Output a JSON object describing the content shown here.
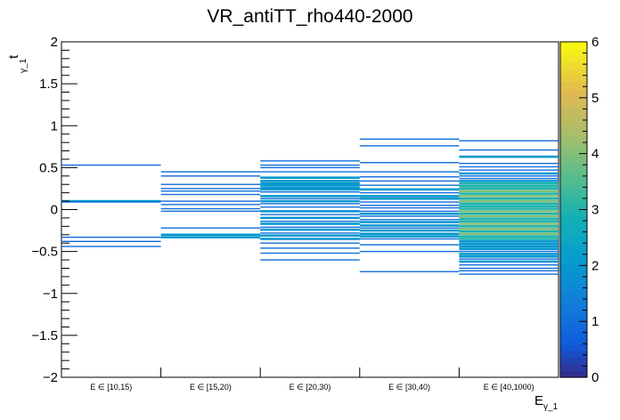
{
  "chart_data": {
    "type": "heatmap",
    "title": "VR_antiTT_rho440-2000",
    "xlabel": "E",
    "xlabel_sub": "γ_1",
    "ylabel": "t",
    "ylabel_sub": "γ_1",
    "categories": [
      "E ∈ [10,15)",
      "E ∈ [15,20)",
      "E ∈ [20,30)",
      "E ∈ [30,40)",
      "E ∈ [40,1000)"
    ],
    "ylim": [
      -2,
      2
    ],
    "yticks": [
      {
        "value": 2,
        "label": "2"
      },
      {
        "value": 1.5,
        "label": "1.5"
      },
      {
        "value": 1,
        "label": "1"
      },
      {
        "value": 0.5,
        "label": "0.5"
      },
      {
        "value": 0,
        "label": "0"
      },
      {
        "value": -0.5,
        "label": "−0.5"
      },
      {
        "value": -1,
        "label": "−1"
      },
      {
        "value": -1.5,
        "label": "−1.5"
      },
      {
        "value": -2,
        "label": "−2"
      }
    ],
    "zlim": [
      0,
      6
    ],
    "zticks": [
      {
        "value": 0,
        "label": "0"
      },
      {
        "value": 1,
        "label": "1"
      },
      {
        "value": 2,
        "label": "2"
      },
      {
        "value": 3,
        "label": "3"
      },
      {
        "value": 4,
        "label": "4"
      },
      {
        "value": 5,
        "label": "5"
      },
      {
        "value": 6,
        "label": "6"
      }
    ],
    "series": [
      {
        "name": "E ∈ [10,15)",
        "points": [
          [
            0.53,
            1
          ],
          [
            0.1,
            2
          ],
          [
            0.09,
            1
          ],
          [
            -0.33,
            1
          ],
          [
            -0.38,
            1
          ],
          [
            -0.44,
            1
          ]
        ]
      },
      {
        "name": "E ∈ [15,20)",
        "points": [
          [
            0.45,
            1
          ],
          [
            0.4,
            1
          ],
          [
            0.3,
            1
          ],
          [
            0.25,
            1
          ],
          [
            0.22,
            1
          ],
          [
            0.18,
            1
          ],
          [
            0.1,
            1
          ],
          [
            0.06,
            1
          ],
          [
            0.01,
            1
          ],
          [
            -0.02,
            1
          ],
          [
            -0.22,
            1
          ],
          [
            -0.3,
            2
          ],
          [
            -0.33,
            2
          ]
        ]
      },
      {
        "name": "E ∈ [20,30)",
        "points": [
          [
            0.58,
            1
          ],
          [
            0.53,
            1
          ],
          [
            0.5,
            1
          ],
          [
            0.45,
            1
          ],
          [
            0.38,
            2
          ],
          [
            0.34,
            2
          ],
          [
            0.31,
            2
          ],
          [
            0.29,
            2
          ],
          [
            0.26,
            2
          ],
          [
            0.24,
            2
          ],
          [
            0.21,
            1
          ],
          [
            0.16,
            2
          ],
          [
            0.13,
            1
          ],
          [
            0.1,
            2
          ],
          [
            0.07,
            1
          ],
          [
            0.03,
            1
          ],
          [
            -0.02,
            2
          ],
          [
            -0.06,
            1
          ],
          [
            -0.1,
            2
          ],
          [
            -0.14,
            1
          ],
          [
            -0.17,
            2
          ],
          [
            -0.21,
            1
          ],
          [
            -0.24,
            2
          ],
          [
            -0.28,
            1
          ],
          [
            -0.31,
            2
          ],
          [
            -0.35,
            2
          ],
          [
            -0.4,
            1
          ],
          [
            -0.46,
            1
          ],
          [
            -0.52,
            1
          ],
          [
            -0.6,
            1
          ]
        ]
      },
      {
        "name": "E ∈ [30,40)",
        "points": [
          [
            0.84,
            1
          ],
          [
            0.76,
            1
          ],
          [
            0.56,
            1
          ],
          [
            0.45,
            1
          ],
          [
            0.39,
            1
          ],
          [
            0.34,
            1
          ],
          [
            0.29,
            1
          ],
          [
            0.24,
            2
          ],
          [
            0.2,
            1
          ],
          [
            0.16,
            2
          ],
          [
            0.13,
            2
          ],
          [
            0.09,
            1
          ],
          [
            0.05,
            1
          ],
          [
            0.02,
            1
          ],
          [
            -0.02,
            1
          ],
          [
            -0.05,
            2
          ],
          [
            -0.08,
            1
          ],
          [
            -0.12,
            1
          ],
          [
            -0.15,
            2
          ],
          [
            -0.19,
            2
          ],
          [
            -0.22,
            1
          ],
          [
            -0.25,
            2
          ],
          [
            -0.29,
            2
          ],
          [
            -0.32,
            2
          ],
          [
            -0.35,
            1
          ],
          [
            -0.42,
            1
          ],
          [
            -0.5,
            1
          ],
          [
            -0.74,
            1
          ]
        ]
      },
      {
        "name": "E ∈ [40,1000)",
        "points": [
          [
            0.82,
            1
          ],
          [
            0.71,
            1
          ],
          [
            0.63,
            2
          ],
          [
            0.55,
            1
          ],
          [
            0.51,
            1
          ],
          [
            0.47,
            1
          ],
          [
            0.43,
            2
          ],
          [
            0.4,
            1
          ],
          [
            0.37,
            1
          ],
          [
            0.34,
            2
          ],
          [
            0.31,
            3
          ],
          [
            0.28,
            3
          ],
          [
            0.25,
            3
          ],
          [
            0.22,
            4
          ],
          [
            0.19,
            3
          ],
          [
            0.16,
            4
          ],
          [
            0.13,
            3
          ],
          [
            0.1,
            4
          ],
          [
            0.07,
            3
          ],
          [
            0.04,
            3
          ],
          [
            0.01,
            3
          ],
          [
            -0.02,
            4
          ],
          [
            -0.05,
            3
          ],
          [
            -0.08,
            4
          ],
          [
            -0.11,
            3
          ],
          [
            -0.14,
            3
          ],
          [
            -0.17,
            4
          ],
          [
            -0.2,
            3
          ],
          [
            -0.23,
            4
          ],
          [
            -0.26,
            3
          ],
          [
            -0.29,
            4
          ],
          [
            -0.32,
            3
          ],
          [
            -0.35,
            3
          ],
          [
            -0.38,
            2
          ],
          [
            -0.41,
            2
          ],
          [
            -0.44,
            2
          ],
          [
            -0.47,
            2
          ],
          [
            -0.5,
            1
          ],
          [
            -0.53,
            2
          ],
          [
            -0.56,
            2
          ],
          [
            -0.59,
            1
          ],
          [
            -0.62,
            2
          ],
          [
            -0.66,
            1
          ],
          [
            -0.7,
            1
          ],
          [
            -0.73,
            1
          ],
          [
            -0.77,
            1
          ]
        ]
      }
    ]
  }
}
